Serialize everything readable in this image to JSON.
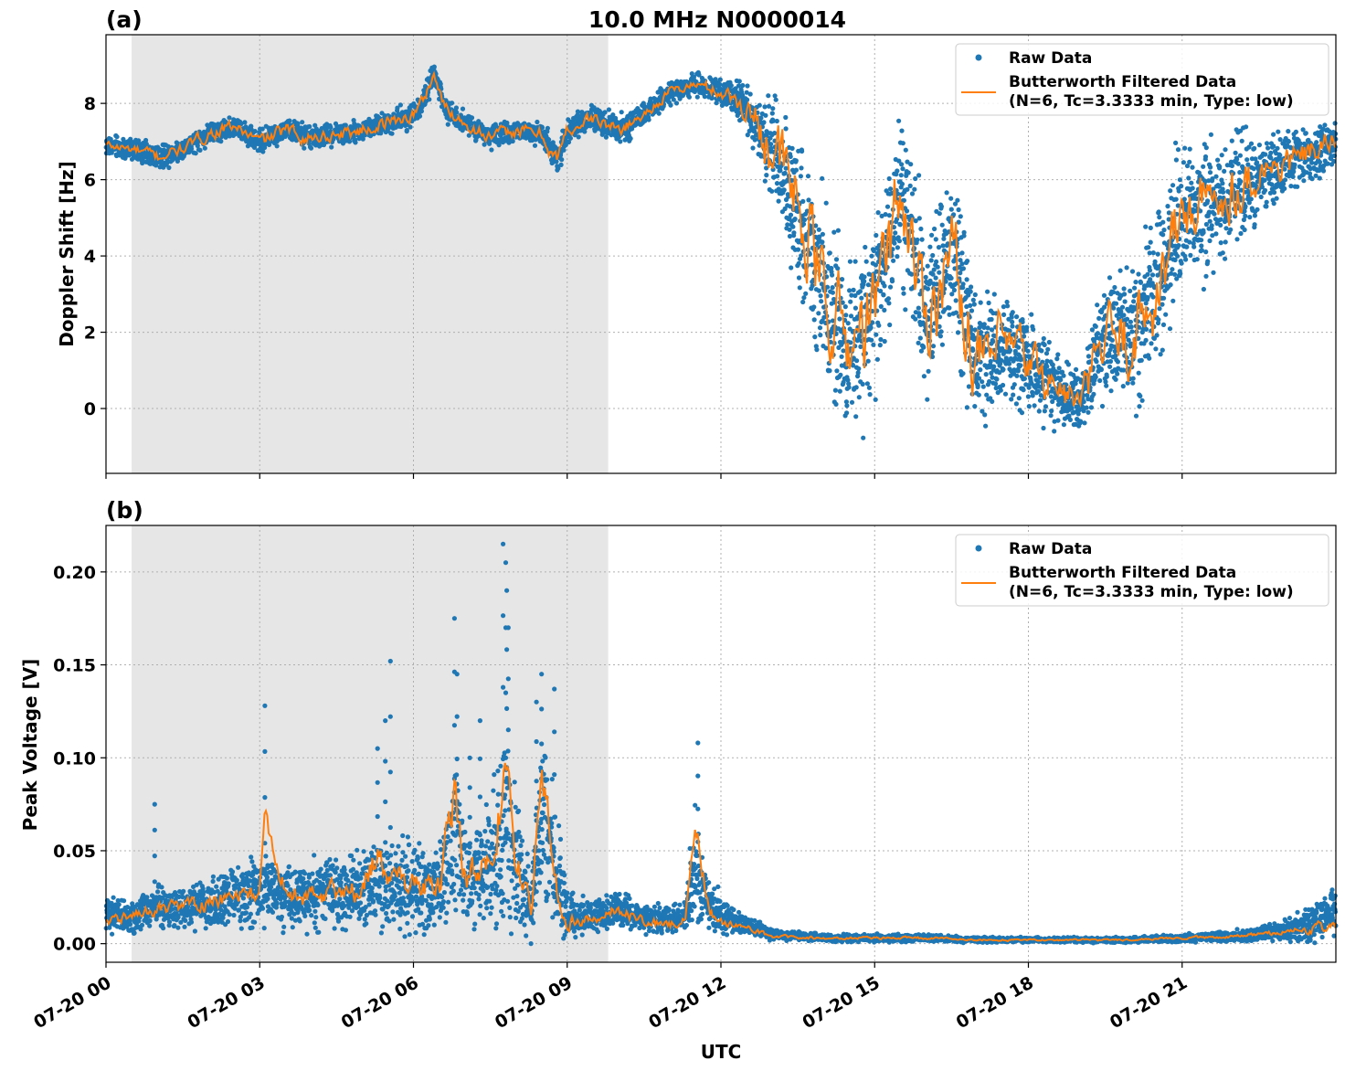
{
  "figure": {
    "title": "10.0 MHz N0000014",
    "xlabel": "UTC"
  },
  "colors": {
    "raw": "#1f77b4",
    "filtered": "#ff7f0e",
    "night_shade": "#e6e6e6"
  },
  "chart_data": [
    {
      "panel": "(a)",
      "type": "scatter",
      "title": "10.0 MHz N0000014",
      "xlabel": "",
      "ylabel": "Doppler Shift [Hz]",
      "x_unit": "hours UTC since 07-20 00:00",
      "xlim": [
        0,
        24
      ],
      "ylim": [
        -1.7,
        9.8
      ],
      "x_ticks": [
        0,
        3,
        6,
        9,
        12,
        15,
        18,
        21
      ],
      "y_ticks": [
        0,
        2,
        4,
        6,
        8
      ],
      "y_tick_labels": [
        "0",
        "2",
        "4",
        "6",
        "8"
      ],
      "grid": true,
      "legend_position": "upper right",
      "shaded_interval": [
        0.5,
        9.8
      ],
      "series": [
        {
          "name": "Raw Data",
          "kind": "points",
          "x": [
            0,
            0.5,
            1,
            1.5,
            2,
            2.5,
            3,
            3.5,
            4,
            4.5,
            5,
            5.5,
            6,
            6.2,
            6.4,
            6.6,
            7,
            7.5,
            8,
            8.5,
            8.8,
            9,
            9.5,
            10,
            10.5,
            11,
            11.5,
            12,
            12.5,
            13,
            13.5,
            14,
            14.5,
            15,
            15.5,
            16,
            16.5,
            17,
            17.5,
            18,
            18.5,
            19,
            19.5,
            20,
            20.5,
            21,
            21.5,
            22,
            22.5,
            23,
            23.5,
            24
          ],
          "y": [
            6.9,
            6.8,
            6.6,
            6.8,
            7.2,
            7.4,
            7.0,
            7.3,
            7.1,
            7.2,
            7.3,
            7.5,
            7.7,
            8.1,
            8.8,
            7.9,
            7.5,
            7.1,
            7.3,
            7.2,
            6.5,
            7.3,
            7.6,
            7.3,
            7.7,
            8.3,
            8.5,
            8.3,
            7.9,
            6.9,
            5.3,
            3.1,
            1.6,
            2.6,
            5.8,
            2.4,
            4.2,
            1.1,
            1.6,
            1.2,
            0.6,
            0.1,
            1.8,
            1.9,
            3.1,
            5.1,
            5.3,
            5.8,
            6.2,
            6.4,
            6.7,
            7.0
          ],
          "spread": [
            0.3,
            0.3,
            0.35,
            0.3,
            0.3,
            0.3,
            0.3,
            0.3,
            0.3,
            0.3,
            0.3,
            0.3,
            0.35,
            0.35,
            0.3,
            0.35,
            0.3,
            0.3,
            0.3,
            0.3,
            0.5,
            0.35,
            0.35,
            0.4,
            0.35,
            0.3,
            0.3,
            0.35,
            0.6,
            1.4,
            2.2,
            2.4,
            2.4,
            2.4,
            2.3,
            2.3,
            2.2,
            2.0,
            1.6,
            1.3,
            1.0,
            0.9,
            1.6,
            2.0,
            2.2,
            2.0,
            1.8,
            1.5,
            1.2,
            0.9,
            0.7,
            0.6
          ]
        },
        {
          "name": "Butterworth Filtered Data\n(N=6, Tc=3.3333 min, Type: low)",
          "kind": "line",
          "x": [
            0,
            0.5,
            1,
            1.5,
            2,
            2.5,
            3,
            3.5,
            4,
            4.5,
            5,
            5.5,
            6,
            6.2,
            6.4,
            6.6,
            7,
            7.5,
            8,
            8.5,
            8.8,
            9,
            9.5,
            10,
            10.5,
            11,
            11.5,
            12,
            12.5,
            13,
            13.5,
            14,
            14.5,
            15,
            15.5,
            16,
            16.5,
            17,
            17.5,
            18,
            18.5,
            19,
            19.5,
            20,
            20.5,
            21,
            21.5,
            22,
            22.5,
            23,
            23.5,
            24
          ],
          "y": [
            6.9,
            6.8,
            6.6,
            6.8,
            7.2,
            7.4,
            7.0,
            7.3,
            7.1,
            7.2,
            7.3,
            7.5,
            7.7,
            8.1,
            8.8,
            7.9,
            7.5,
            7.1,
            7.3,
            7.2,
            6.5,
            7.3,
            7.6,
            7.3,
            7.7,
            8.3,
            8.5,
            8.3,
            7.9,
            6.9,
            5.3,
            3.1,
            1.6,
            2.6,
            5.8,
            2.4,
            4.2,
            1.1,
            1.6,
            1.2,
            0.6,
            0.1,
            1.8,
            1.9,
            3.1,
            5.1,
            5.3,
            5.8,
            6.2,
            6.4,
            6.7,
            7.0
          ],
          "wiggle": [
            0.15,
            0.15,
            0.2,
            0.15,
            0.2,
            0.15,
            0.2,
            0.2,
            0.2,
            0.2,
            0.2,
            0.2,
            0.2,
            0.2,
            0.2,
            0.2,
            0.2,
            0.2,
            0.2,
            0.2,
            0.3,
            0.2,
            0.2,
            0.2,
            0.15,
            0.15,
            0.15,
            0.2,
            0.4,
            1.0,
            1.4,
            1.4,
            1.3,
            1.3,
            1.3,
            1.3,
            1.3,
            1.1,
            1.0,
            0.8,
            0.6,
            0.5,
            1.0,
            1.2,
            1.2,
            1.0,
            0.9,
            0.8,
            0.6,
            0.5,
            0.4,
            0.3
          ]
        }
      ]
    },
    {
      "panel": "(b)",
      "type": "scatter",
      "title": "",
      "xlabel": "UTC",
      "ylabel": "Peak Voltage [V]",
      "x_unit": "hours UTC since 07-20 00:00",
      "xlim": [
        0,
        24
      ],
      "ylim": [
        -0.01,
        0.225
      ],
      "x_ticks": [
        0,
        3,
        6,
        9,
        12,
        15,
        18,
        21
      ],
      "x_tick_labels": [
        "07-20 00",
        "07-20 03",
        "07-20 06",
        "07-20 09",
        "07-20 12",
        "07-20 15",
        "07-20 18",
        "07-20 21"
      ],
      "y_ticks": [
        0.0,
        0.05,
        0.1,
        0.15,
        0.2
      ],
      "y_tick_labels": [
        "0.00",
        "0.05",
        "0.10",
        "0.15",
        "0.20"
      ],
      "grid": true,
      "legend_position": "upper right",
      "shaded_interval": [
        0.5,
        9.8
      ],
      "series": [
        {
          "name": "Raw Data",
          "kind": "points",
          "x": [
            0,
            0.5,
            1,
            1.5,
            2,
            2.5,
            3,
            3.5,
            4,
            4.5,
            5,
            5.5,
            6,
            6.5,
            6.8,
            7,
            7.5,
            7.8,
            8,
            8.3,
            8.5,
            8.8,
            9,
            9.5,
            10,
            10.5,
            11,
            11.3,
            11.5,
            11.8,
            12,
            12.5,
            13,
            14,
            15,
            16,
            17,
            18,
            19,
            20,
            21,
            22,
            22.5,
            23,
            23.5,
            24
          ],
          "y": [
            0.015,
            0.015,
            0.02,
            0.018,
            0.022,
            0.026,
            0.03,
            0.027,
            0.025,
            0.028,
            0.03,
            0.033,
            0.03,
            0.028,
            0.06,
            0.035,
            0.04,
            0.065,
            0.045,
            0.02,
            0.07,
            0.04,
            0.015,
            0.015,
            0.018,
            0.014,
            0.012,
            0.015,
            0.04,
            0.022,
            0.015,
            0.01,
            0.005,
            0.003,
            0.003,
            0.003,
            0.002,
            0.002,
            0.002,
            0.002,
            0.003,
            0.004,
            0.005,
            0.007,
            0.01,
            0.02
          ],
          "spread": [
            0.01,
            0.01,
            0.012,
            0.012,
            0.015,
            0.015,
            0.02,
            0.018,
            0.018,
            0.02,
            0.022,
            0.025,
            0.025,
            0.022,
            0.04,
            0.03,
            0.035,
            0.06,
            0.04,
            0.02,
            0.05,
            0.035,
            0.012,
            0.01,
            0.01,
            0.008,
            0.008,
            0.01,
            0.035,
            0.015,
            0.01,
            0.005,
            0.003,
            0.002,
            0.002,
            0.002,
            0.0015,
            0.0015,
            0.0015,
            0.0015,
            0.002,
            0.003,
            0.004,
            0.006,
            0.01,
            0.015
          ],
          "outliers_x": [
            0.95,
            3.1,
            5.3,
            5.45,
            5.55,
            6.8,
            6.85,
            7.1,
            7.3,
            7.75,
            7.8,
            7.82,
            7.85,
            8.4,
            8.5,
            8.75,
            11.55
          ],
          "outliers_y": [
            0.075,
            0.128,
            0.105,
            0.12,
            0.152,
            0.175,
            0.145,
            0.1,
            0.12,
            0.215,
            0.205,
            0.19,
            0.17,
            0.13,
            0.145,
            0.137,
            0.108
          ]
        },
        {
          "name": "Butterworth Filtered Data\n(N=6, Tc=3.3333 min, Type: low)",
          "kind": "line",
          "x": [
            0,
            0.5,
            1,
            1.5,
            2,
            2.5,
            3,
            3.1,
            3.5,
            4,
            4.5,
            5,
            5.3,
            5.5,
            6,
            6.5,
            6.8,
            7,
            7.5,
            7.8,
            8,
            8.3,
            8.5,
            8.8,
            9,
            9.5,
            10,
            10.5,
            11,
            11.3,
            11.5,
            11.8,
            12,
            12.5,
            13,
            14,
            15,
            16,
            17,
            18,
            19,
            20,
            21,
            22,
            22.5,
            23,
            23.5,
            24
          ],
          "y": [
            0.012,
            0.015,
            0.018,
            0.02,
            0.022,
            0.025,
            0.028,
            0.065,
            0.028,
            0.025,
            0.028,
            0.03,
            0.05,
            0.035,
            0.032,
            0.03,
            0.08,
            0.035,
            0.04,
            0.095,
            0.045,
            0.018,
            0.098,
            0.03,
            0.012,
            0.014,
            0.018,
            0.012,
            0.01,
            0.012,
            0.058,
            0.018,
            0.012,
            0.008,
            0.004,
            0.003,
            0.003,
            0.003,
            0.002,
            0.002,
            0.002,
            0.002,
            0.003,
            0.004,
            0.005,
            0.006,
            0.008,
            0.01
          ],
          "wiggle": [
            0.003,
            0.003,
            0.004,
            0.004,
            0.005,
            0.005,
            0.006,
            0.01,
            0.006,
            0.006,
            0.007,
            0.008,
            0.01,
            0.008,
            0.008,
            0.008,
            0.015,
            0.01,
            0.01,
            0.02,
            0.012,
            0.006,
            0.015,
            0.008,
            0.004,
            0.004,
            0.004,
            0.003,
            0.003,
            0.003,
            0.01,
            0.004,
            0.003,
            0.002,
            0.001,
            0.0008,
            0.0008,
            0.0008,
            0.0006,
            0.0006,
            0.0006,
            0.0006,
            0.0008,
            0.001,
            0.0015,
            0.002,
            0.003,
            0.004
          ]
        }
      ]
    }
  ]
}
